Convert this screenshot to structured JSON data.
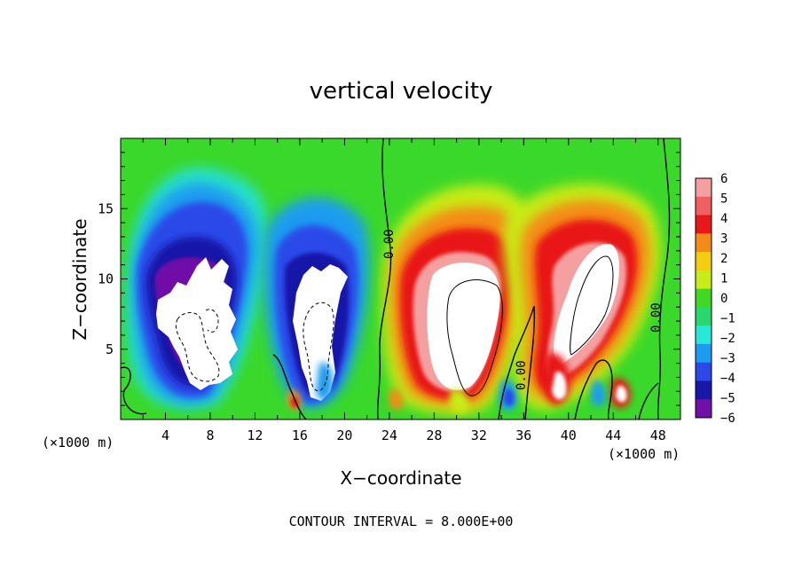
{
  "chart_data": {
    "type": "heatmap",
    "title": "vertical velocity",
    "xlabel": "X−coordinate",
    "ylabel": "Z−coordinate",
    "x_unit_left": "(×1000 m)",
    "x_unit_right": "(×1000 m)",
    "xlim": [
      0,
      50
    ],
    "ylim": [
      0,
      20
    ],
    "x_ticks": [
      4,
      8,
      12,
      16,
      20,
      24,
      28,
      32,
      36,
      40,
      44,
      48
    ],
    "x_tick_labels": [
      "4",
      "8",
      "12",
      "16",
      "20",
      "24",
      "28",
      "32",
      "36",
      "40",
      "44",
      "48"
    ],
    "y_ticks": [
      5,
      10,
      15
    ],
    "y_tick_labels": [
      "5",
      "10",
      "15"
    ],
    "colorbar": {
      "levels": [
        6,
        5,
        4,
        3,
        2,
        1,
        0,
        -1,
        -2,
        -3,
        -4,
        -5,
        -6
      ],
      "labels": [
        "6",
        "5",
        "4",
        "3",
        "2",
        "1",
        "0",
        "−1",
        "−2",
        "−3",
        "−4",
        "−5",
        "−6"
      ],
      "colors": [
        "#f4a0a0",
        "#f06060",
        "#e81818",
        "#f48a18",
        "#f4cc10",
        "#c8ec18",
        "#40d820",
        "#28d86c",
        "#28e8d8",
        "#1c9cf0",
        "#2c48e8",
        "#1818a8",
        "#7010a8"
      ]
    },
    "contour_interval_text": "CONTOUR INTERVAL = 8.000E+00",
    "contour_labels": [
      "0.00",
      "0.00",
      "0.00"
    ],
    "features": [
      {
        "type": "downdraft",
        "x_center": 7.5,
        "z_center": 8,
        "min_value": "< -6"
      },
      {
        "type": "downdraft",
        "x_center": 18,
        "z_center": 7,
        "min_value": "< -6"
      },
      {
        "type": "updraft",
        "x_center": 31,
        "z_center": 7,
        "max_value": "> 6"
      },
      {
        "type": "updraft",
        "x_center": 41.5,
        "z_center": 8.5,
        "max_value": "> 6"
      },
      {
        "type": "updraft",
        "x_center": 39,
        "z_center": 2,
        "max_value": "> 6"
      }
    ]
  }
}
